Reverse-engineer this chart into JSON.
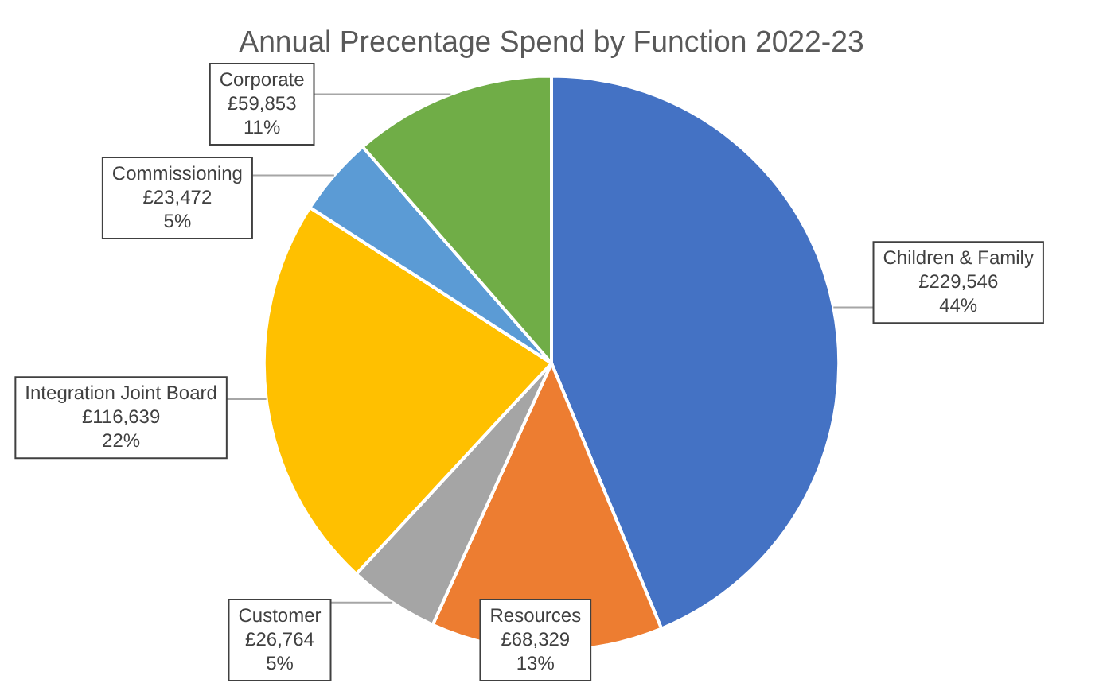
{
  "chart_data": {
    "type": "pie",
    "title": "Annual Precentage Spend by Function 2022-23",
    "categories": [
      "Children & Family",
      "Resources",
      "Customer",
      "Integration Joint Board",
      "Commissioning",
      "Corporate"
    ],
    "values": [
      229546,
      68329,
      26764,
      116639,
      23472,
      59853
    ],
    "colors": [
      "#4472c4",
      "#ed7d31",
      "#a5a5a5",
      "#ffc000",
      "#5b9bd5",
      "#70ad47"
    ],
    "value_labels": [
      "£229,546\n44%",
      "£68,329\n13%",
      "£26,764\n5%",
      "£116,639\n22%",
      "£23,472\n5%",
      "£59,853\n11%"
    ],
    "legend": false
  }
}
